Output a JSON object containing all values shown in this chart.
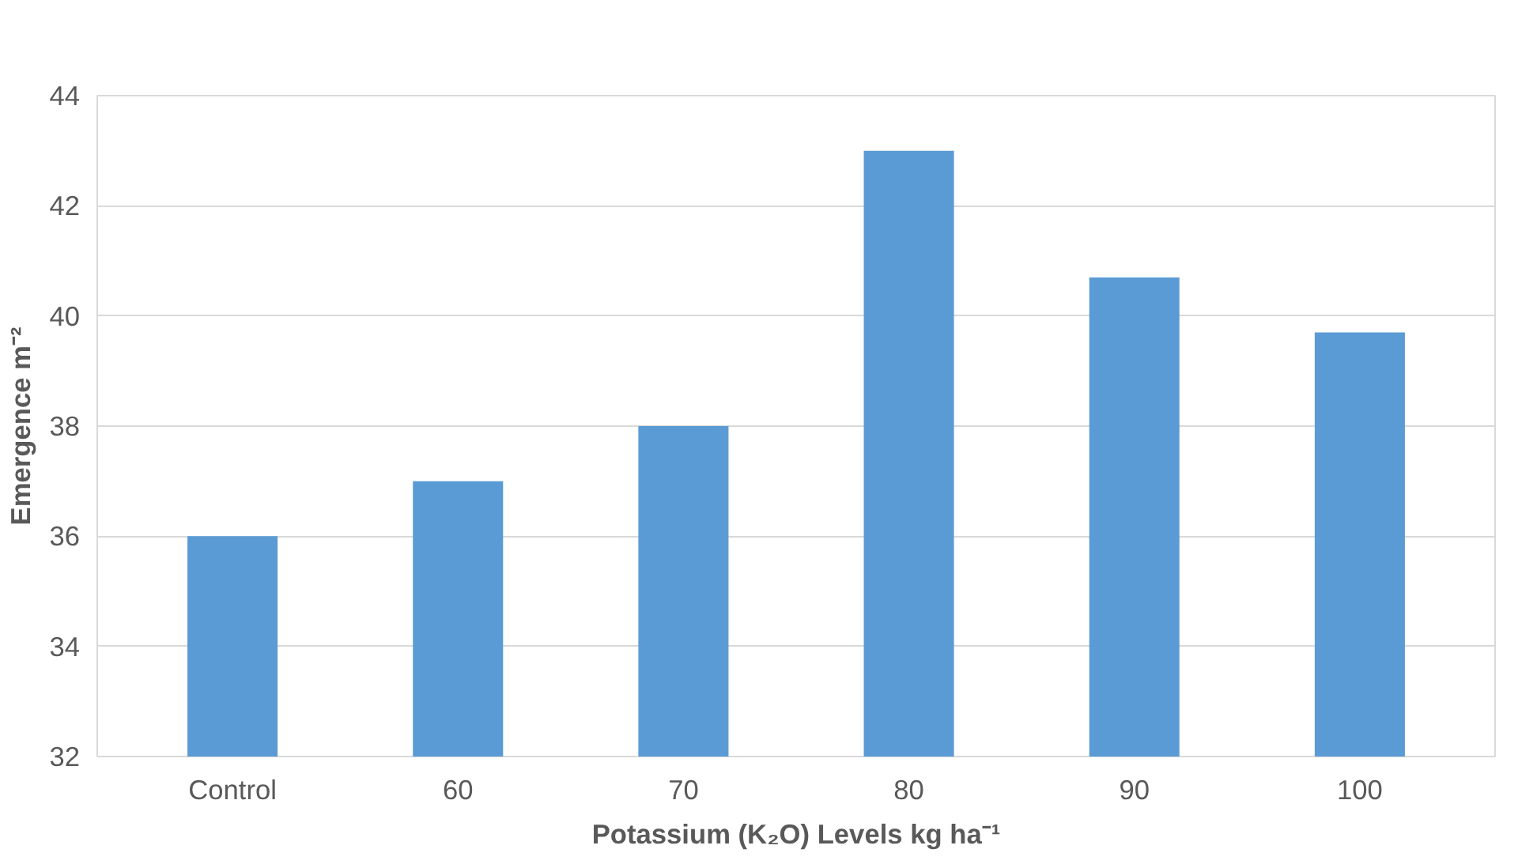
{
  "chart_data": {
    "type": "bar",
    "xlabel": "Potassium (K₂O) Levels kg ha⁻¹",
    "ylabel": "Emergence m⁻²",
    "categories": [
      "Control",
      "60",
      "70",
      "80",
      "90",
      "100"
    ],
    "values": [
      36,
      37,
      38,
      43,
      40.7,
      39.7
    ],
    "color": "#5b9bd5",
    "ylim": [
      32,
      44
    ],
    "yticks": [
      32,
      34,
      36,
      38,
      40,
      42,
      44
    ],
    "grid": "y"
  }
}
